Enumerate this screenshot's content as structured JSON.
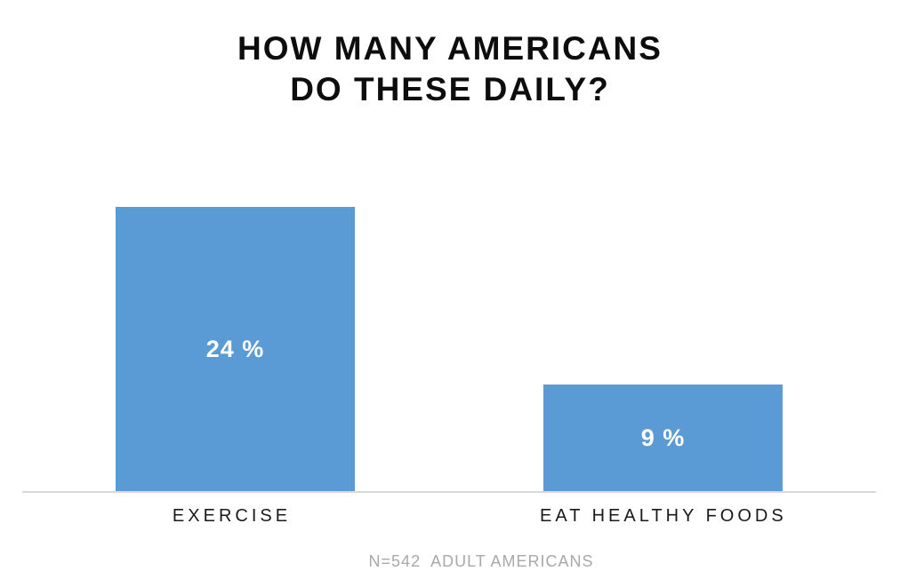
{
  "title": {
    "line1": "HOW MANY AMERICANS",
    "line2": "DO THESE DAILY?"
  },
  "chart_data": {
    "type": "bar",
    "title": "HOW MANY AMERICANS DO THESE DAILY?",
    "categories": [
      "EXERCISE",
      "EAT HEALTHY FOODS"
    ],
    "values": [
      24,
      9
    ],
    "data_labels": [
      "24 %",
      "9 %"
    ],
    "unit": "percent of adult Americans",
    "xlabel": "",
    "ylabel": "",
    "ylim": [
      0,
      30
    ],
    "grid": false,
    "legend": "none",
    "footnote": "N=542  ADULT AMERICANS",
    "bar_color": "#5B9BD5",
    "data_label_color": "#FFFFFF",
    "axis_line_color": "#D9D9D9"
  },
  "colors": {
    "background": "#FFFFFF",
    "title_text": "#0D0D0D",
    "category_text": "#1A1A1A",
    "footnote_text": "#A9A9A9"
  }
}
